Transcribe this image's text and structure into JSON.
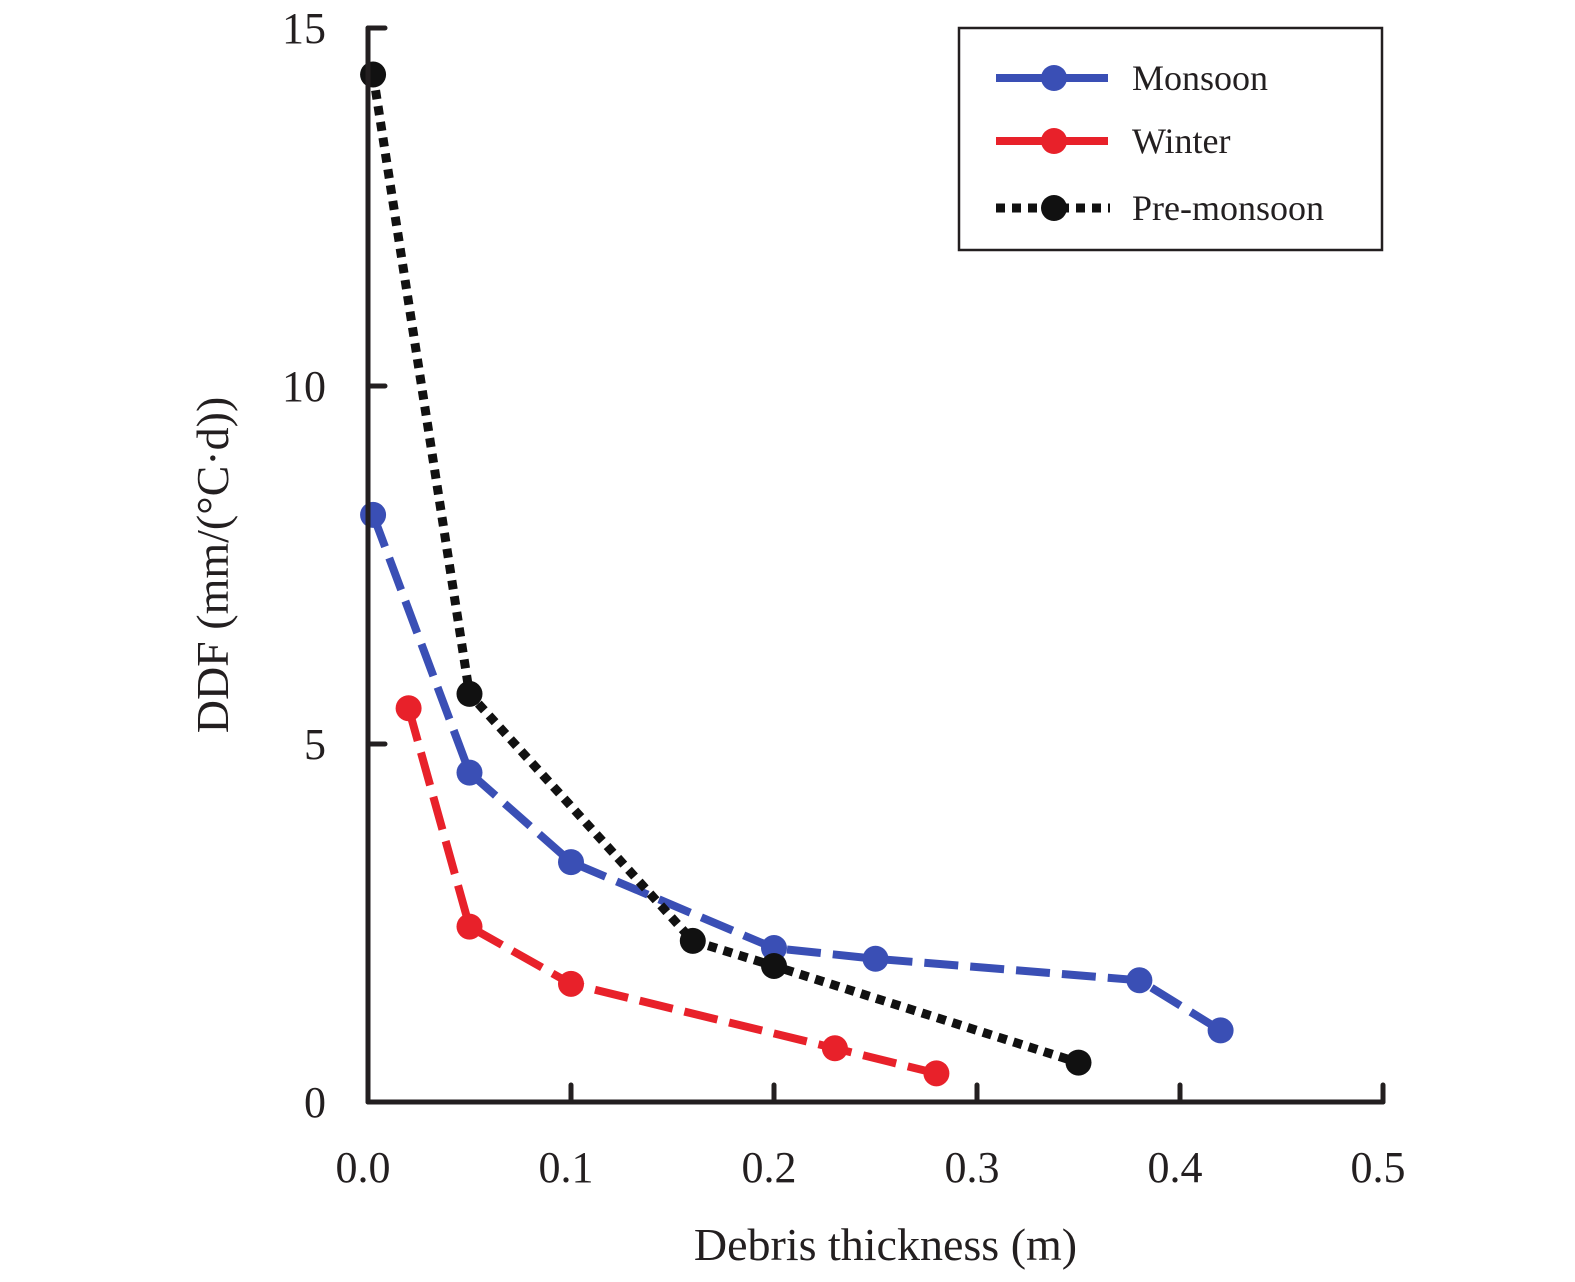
{
  "chart_data": {
    "type": "line",
    "title": "",
    "xlabel": "Debris thickness (m)",
    "ylabel": "DDF (mm/(°C·d))",
    "xlim": [
      0.0,
      0.5
    ],
    "ylim": [
      0,
      15
    ],
    "x_ticks": [
      0.0,
      0.1,
      0.2,
      0.3,
      0.4,
      0.5
    ],
    "x_tick_labels": [
      "0.0",
      "0.1",
      "0.2",
      "0.3",
      "0.4",
      "0.5"
    ],
    "y_ticks": [
      0,
      5,
      10,
      15
    ],
    "y_tick_labels": [
      "0",
      "5",
      "10",
      "15"
    ],
    "grid": false,
    "legend_position": "top-right",
    "series": [
      {
        "name": "Monsoon",
        "color": "#3a4fb5",
        "line_style": "dashed",
        "marker": "circle",
        "x": [
          0.0025,
          0.05,
          0.1,
          0.2,
          0.25,
          0.38,
          0.42
        ],
        "y": [
          8.2,
          4.6,
          3.35,
          2.15,
          2.0,
          1.7,
          1.0
        ]
      },
      {
        "name": "Winter",
        "color": "#e8212a",
        "line_style": "dashed",
        "marker": "circle",
        "x": [
          0.02,
          0.05,
          0.1,
          0.23,
          0.28
        ],
        "y": [
          5.5,
          2.45,
          1.65,
          0.75,
          0.4
        ]
      },
      {
        "name": "Pre-monsoon",
        "color": "#111111",
        "line_style": "dotted",
        "marker": "circle",
        "x": [
          0.0025,
          0.05,
          0.16,
          0.2,
          0.35
        ],
        "y": [
          14.35,
          5.7,
          2.25,
          1.9,
          0.55
        ]
      }
    ]
  }
}
